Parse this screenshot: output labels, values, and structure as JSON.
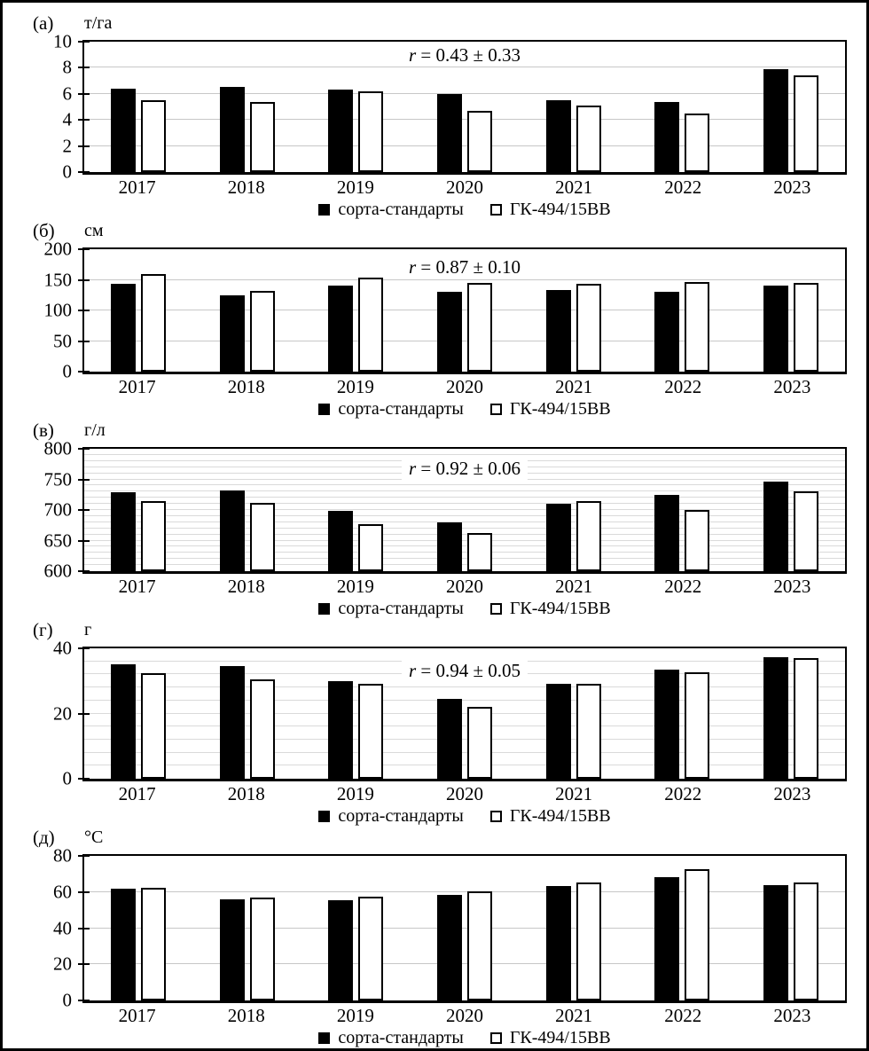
{
  "figure": {
    "description": "Five stacked bar-chart panels comparing two wheat entries by year",
    "colors": {
      "bar_filled": "#000000",
      "bar_open_fill": "#ffffff",
      "bar_border": "#000000",
      "gridline_major": "#c7c7c7",
      "gridline_minor": "#dadada",
      "frame": "#000000",
      "background": "#ffffff"
    }
  },
  "chart_data": [
    {
      "type": "bar",
      "panel_label": "(а)",
      "ylabel": "т/га",
      "annotation": "r = 0.43 ± 0.33",
      "categories": [
        "2017",
        "2018",
        "2019",
        "2020",
        "2021",
        "2022",
        "2023"
      ],
      "series": [
        {
          "name": "сорта-стандарты",
          "marker": "filled-black-square",
          "values": [
            6.4,
            6.5,
            6.3,
            6.0,
            5.5,
            5.4,
            7.9
          ]
        },
        {
          "name": "ГК-494/15ВВ",
          "marker": "open-white-square",
          "values": [
            5.5,
            5.4,
            6.2,
            4.7,
            5.1,
            4.5,
            7.4
          ]
        }
      ],
      "ylim": [
        0,
        10
      ],
      "yticks": [
        0,
        2,
        4,
        6,
        8,
        10
      ],
      "grid_step": 2,
      "grid_style": "major",
      "legend_position": "bottom"
    },
    {
      "type": "bar",
      "panel_label": "(б)",
      "ylabel": "см",
      "annotation": "r = 0.87 ± 0.10",
      "categories": [
        "2017",
        "2018",
        "2019",
        "2020",
        "2021",
        "2022",
        "2023"
      ],
      "series": [
        {
          "name": "сорта-стандарты",
          "marker": "filled-black-square",
          "values": [
            143,
            124,
            141,
            130,
            134,
            130,
            140
          ]
        },
        {
          "name": "ГК-494/15ВВ",
          "marker": "open-white-square",
          "values": [
            159,
            132,
            154,
            145,
            143,
            146,
            145
          ]
        }
      ],
      "ylim": [
        0,
        200
      ],
      "yticks": [
        0,
        50,
        100,
        150,
        200
      ],
      "grid_step": 50,
      "grid_style": "major",
      "legend_position": "bottom"
    },
    {
      "type": "bar",
      "panel_label": "(в)",
      "ylabel": "г/л",
      "annotation": "r = 0.92 ± 0.06",
      "categories": [
        "2017",
        "2018",
        "2019",
        "2020",
        "2021",
        "2022",
        "2023"
      ],
      "series": [
        {
          "name": "сорта-стандарты",
          "marker": "filled-black-square",
          "values": [
            729,
            732,
            698,
            680,
            710,
            725,
            746
          ]
        },
        {
          "name": "ГК-494/15ВВ",
          "marker": "open-white-square",
          "values": [
            715,
            711,
            677,
            662,
            715,
            700,
            731
          ]
        }
      ],
      "ylim": [
        600,
        800
      ],
      "yticks": [
        600,
        650,
        700,
        750,
        800
      ],
      "grid_step": 10,
      "grid_style": "minor",
      "legend_position": "bottom"
    },
    {
      "type": "bar",
      "panel_label": "(г)",
      "ylabel": "г",
      "annotation": "r = 0.94 ± 0.05",
      "categories": [
        "2017",
        "2018",
        "2019",
        "2020",
        "2021",
        "2022",
        "2023"
      ],
      "series": [
        {
          "name": "сорта-стандарты",
          "marker": "filled-black-square",
          "values": [
            35.2,
            34.6,
            30.0,
            24.5,
            29.0,
            33.5,
            37.3
          ]
        },
        {
          "name": "ГК-494/15ВВ",
          "marker": "open-white-square",
          "values": [
            32.4,
            30.4,
            29.2,
            22.0,
            29.0,
            32.6,
            37.0
          ]
        }
      ],
      "ylim": [
        0,
        40
      ],
      "yticks": [
        0,
        20,
        40
      ],
      "grid_step": 4,
      "grid_style": "minor",
      "legend_position": "bottom"
    },
    {
      "type": "bar",
      "panel_label": "(д)",
      "ylabel": "°С",
      "annotation": "",
      "categories": [
        "2017",
        "2018",
        "2019",
        "2020",
        "2021",
        "2022",
        "2023"
      ],
      "series": [
        {
          "name": "сорта-стандарты",
          "marker": "filled-black-square",
          "values": [
            62,
            56,
            55.5,
            58.5,
            63.5,
            68,
            64
          ]
        },
        {
          "name": "ГК-494/15ВВ",
          "marker": "open-white-square",
          "values": [
            62.5,
            57,
            57.5,
            60.5,
            65.5,
            72.5,
            65.5
          ]
        }
      ],
      "ylim": [
        0,
        80
      ],
      "yticks": [
        0,
        20,
        40,
        60,
        80
      ],
      "grid_step": 20,
      "grid_style": "major",
      "legend_position": "bottom"
    }
  ]
}
